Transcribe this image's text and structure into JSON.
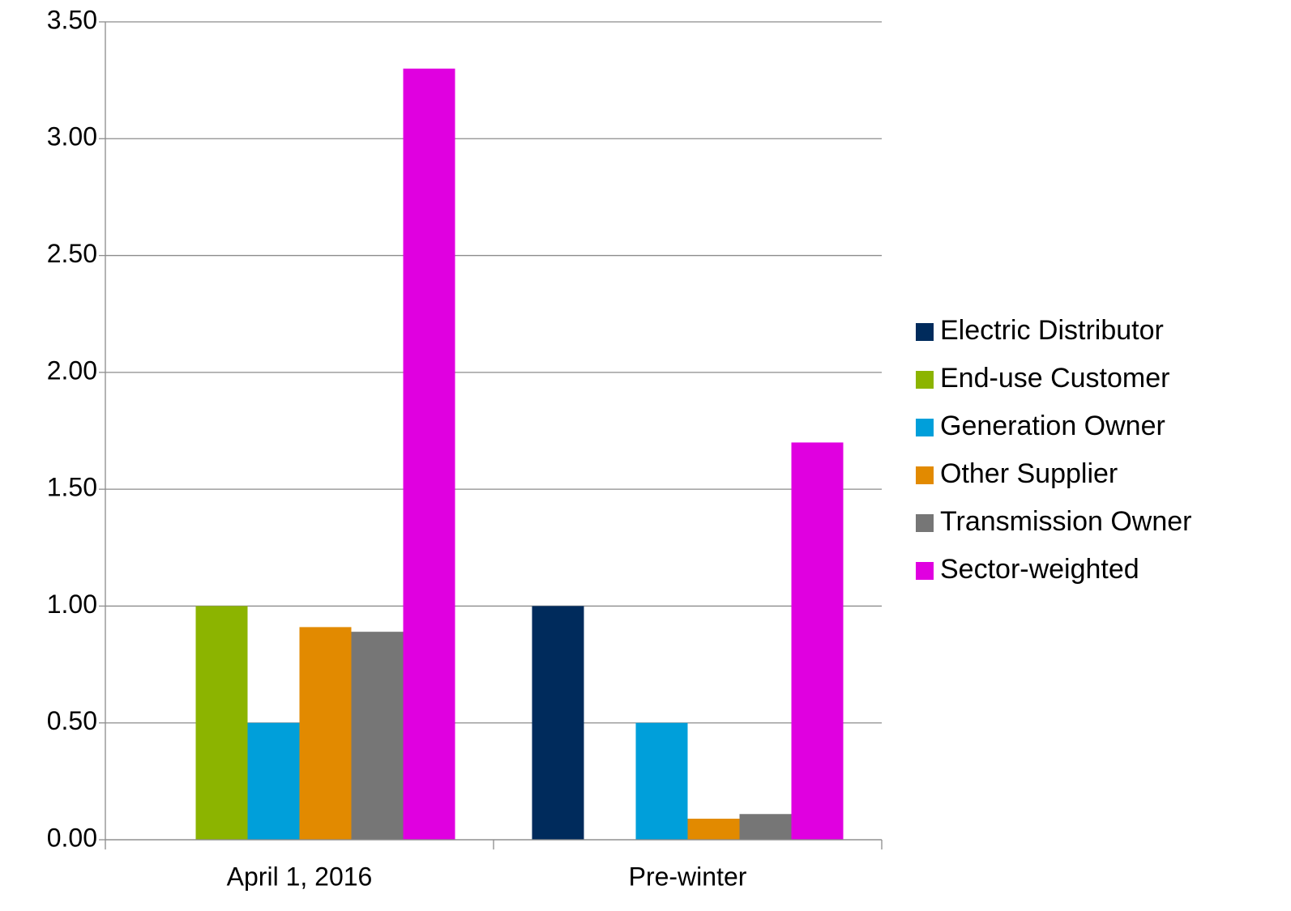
{
  "chart_data": {
    "type": "bar",
    "categories": [
      "April 1, 2016",
      "Pre-winter"
    ],
    "series": [
      {
        "name": "Electric Distributor",
        "color": "#002b5c",
        "values": [
          0,
          1.0
        ]
      },
      {
        "name": "End-use Customer",
        "color": "#8cb400",
        "values": [
          1.0,
          0
        ]
      },
      {
        "name": "Generation Owner",
        "color": "#009fda",
        "values": [
          0.5,
          0.5
        ]
      },
      {
        "name": "Other Supplier",
        "color": "#e28a00",
        "values": [
          0.91,
          0.09
        ]
      },
      {
        "name": "Transmission Owner",
        "color": "#767676",
        "values": [
          0.89,
          0.11
        ]
      },
      {
        "name": "Sector-weighted",
        "color": "#e000e0",
        "values": [
          3.3,
          1.7
        ]
      }
    ],
    "ylim": [
      0,
      3.5
    ],
    "yticks": [
      {
        "value": 0,
        "label": "0.00"
      },
      {
        "value": 0.5,
        "label": "0.50"
      },
      {
        "value": 1,
        "label": "1.00"
      },
      {
        "value": 1.5,
        "label": "1.50"
      },
      {
        "value": 2,
        "label": "2.00"
      },
      {
        "value": 2.5,
        "label": "2.50"
      },
      {
        "value": 3,
        "label": "3.00"
      },
      {
        "value": 3.5,
        "label": "3.50"
      }
    ],
    "grid": true,
    "legend": "right"
  }
}
